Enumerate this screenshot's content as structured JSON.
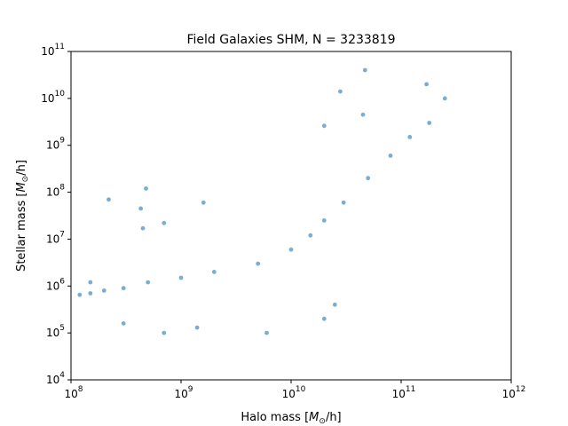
{
  "chart_data": {
    "type": "scatter",
    "title": "Field Galaxies SHM, N = 3233819",
    "xlabel": "Halo mass [M⊙/h]",
    "ylabel": "Stellar mass [M⊙/h]",
    "xscale": "log",
    "yscale": "log",
    "xlim": [
      100000000.0,
      1000000000000.0
    ],
    "ylim": [
      10000.0,
      100000000000.0
    ],
    "xticks": [
      {
        "base": "10",
        "exp": "8"
      },
      {
        "base": "10",
        "exp": "9"
      },
      {
        "base": "10",
        "exp": "10"
      },
      {
        "base": "10",
        "exp": "11"
      },
      {
        "base": "10",
        "exp": "12"
      }
    ],
    "yticks": [
      {
        "base": "10",
        "exp": "4"
      },
      {
        "base": "10",
        "exp": "5"
      },
      {
        "base": "10",
        "exp": "6"
      },
      {
        "base": "10",
        "exp": "7"
      },
      {
        "base": "10",
        "exp": "8"
      },
      {
        "base": "10",
        "exp": "9"
      },
      {
        "base": "10",
        "exp": "10"
      },
      {
        "base": "10",
        "exp": "11"
      }
    ],
    "grid": false,
    "legend": "none",
    "marker_color": "#1f77b4",
    "marker_alpha": 0.6,
    "series": [
      {
        "values": [
          [
            120000000.0,
            650000.0
          ],
          [
            150000000.0,
            700000.0
          ],
          [
            200000000.0,
            800000.0
          ],
          [
            300000000.0,
            900000.0
          ],
          [
            500000000.0,
            1200000.0
          ],
          [
            1000000000.0,
            1500000.0
          ],
          [
            2000000000.0,
            2000000.0
          ],
          [
            5000000000.0,
            3000000.0
          ],
          [
            10000000000.0,
            6000000.0
          ],
          [
            15000000000.0,
            12000000.0
          ],
          [
            20000000000.0,
            25000000.0
          ],
          [
            30000000000.0,
            60000000.0
          ],
          [
            50000000000.0,
            200000000.0
          ],
          [
            80000000000.0,
            600000000.0
          ],
          [
            120000000000.0,
            1500000000.0
          ],
          [
            180000000000.0,
            3000000000.0
          ],
          [
            250000000000.0,
            10000000000.0
          ],
          [
            170000000000.0,
            20000000000.0
          ],
          [
            47000000000.0,
            40000000000.0
          ],
          [
            1600000000.0,
            60000000.0
          ],
          [
            450000000.0,
            17000000.0
          ],
          [
            700000000.0,
            22000000.0
          ],
          [
            220000000.0,
            70000000.0
          ],
          [
            480000000.0,
            120000000.0
          ],
          [
            430000000.0,
            45000000.0
          ],
          [
            700000000.0,
            100000.0
          ],
          [
            1400000000.0,
            130000.0
          ],
          [
            20000000000.0,
            2600000000.0
          ],
          [
            28000000000.0,
            14000000000.0
          ],
          [
            45000000000.0,
            4500000000.0
          ],
          [
            6000000000.0,
            100000.0
          ],
          [
            20000000000.0,
            200000.0
          ],
          [
            25000000000.0,
            400000.0
          ],
          [
            300000000.0,
            160000.0
          ],
          [
            150000000.0,
            1200000.0
          ]
        ]
      }
    ]
  }
}
